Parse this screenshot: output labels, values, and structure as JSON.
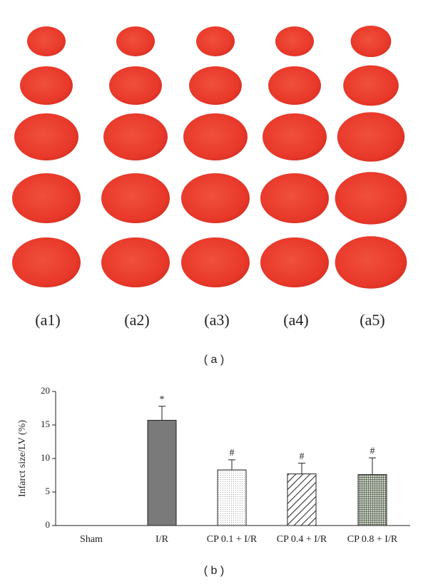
{
  "panel_a": {
    "labels": [
      "(a1)",
      "(a2)",
      "(a3)",
      "(a4)",
      "(a5)"
    ],
    "caption": "( a )"
  },
  "chart_data": {
    "type": "bar",
    "caption": "( b )",
    "y_label": "Infarct size/LV (%)",
    "categories": [
      "Sham",
      "I/R",
      "CP 0.1 + I/R",
      "CP 0.4 + I/R",
      "CP 0.8 + I/R"
    ],
    "values": [
      0,
      15.7,
      8.3,
      7.7,
      7.6
    ],
    "errors": [
      null,
      2.1,
      1.5,
      1.6,
      2.5
    ],
    "annotations": [
      null,
      "*",
      "#",
      "#",
      "#"
    ],
    "ylim": [
      0,
      20
    ],
    "yticks": [
      0,
      5,
      10,
      15,
      20
    ]
  }
}
